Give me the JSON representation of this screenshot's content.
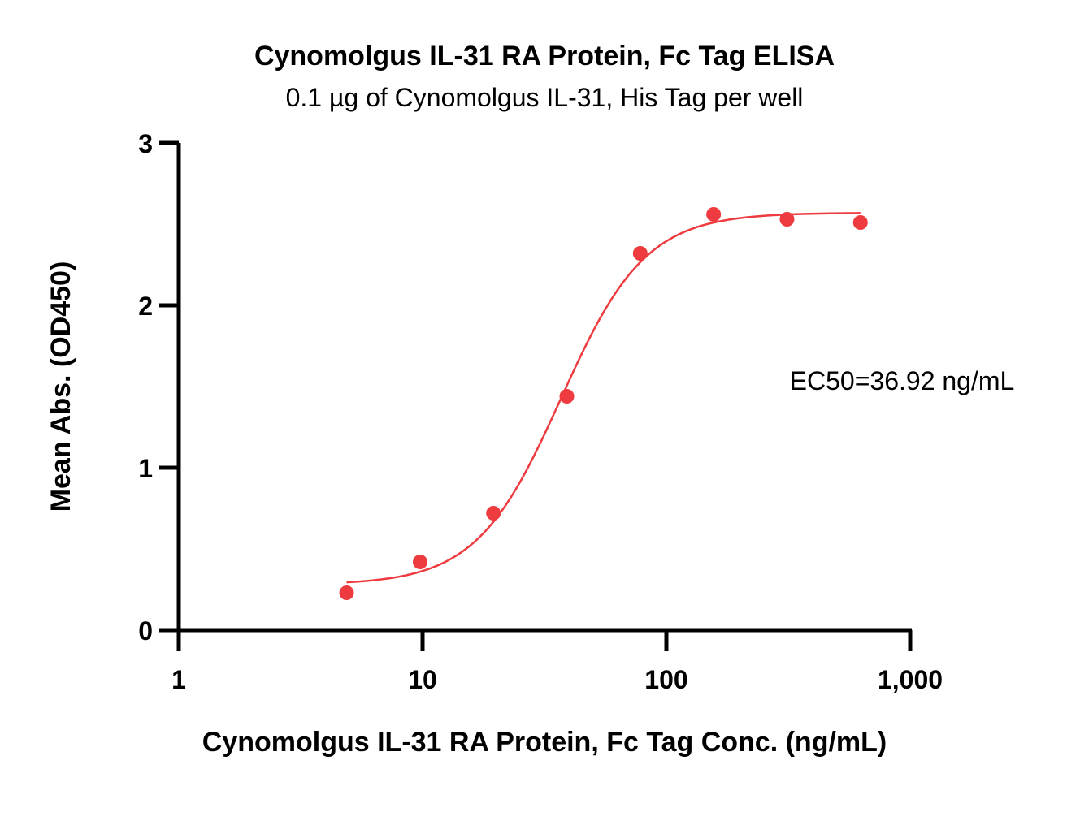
{
  "chart_data": {
    "type": "scatter",
    "title": "Cynomolgus IL-31 RA Protein, Fc Tag ELISA",
    "subtitle": "0.1 µg of Cynomolgus IL-31, His Tag per well",
    "xlabel": "Cynomolgus IL-31 RA Protein, Fc Tag Conc. (ng/mL)",
    "ylabel": "Mean Abs. (OD450)",
    "x_scale": "log",
    "xlim": [
      1,
      1000
    ],
    "ylim": [
      0,
      3
    ],
    "x_ticks": [
      {
        "value": 1,
        "label": "1"
      },
      {
        "value": 10,
        "label": "10"
      },
      {
        "value": 100,
        "label": "100"
      },
      {
        "value": 1000,
        "label": "1,000"
      }
    ],
    "y_ticks": [
      {
        "value": 0,
        "label": "0"
      },
      {
        "value": 1,
        "label": "1"
      },
      {
        "value": 2,
        "label": "2"
      },
      {
        "value": 3,
        "label": "3"
      }
    ],
    "series": [
      {
        "color": "#ee3b3f",
        "points": [
          {
            "x": 4.88,
            "y": 0.23
          },
          {
            "x": 9.77,
            "y": 0.42
          },
          {
            "x": 19.53,
            "y": 0.72
          },
          {
            "x": 39.06,
            "y": 1.44
          },
          {
            "x": 78.13,
            "y": 2.32
          },
          {
            "x": 156.25,
            "y": 2.56
          },
          {
            "x": 312.5,
            "y": 2.53
          },
          {
            "x": 625,
            "y": 2.51
          }
        ],
        "fit_curve": {
          "model": "4PL",
          "bottom": 0.28,
          "top": 2.57,
          "ec50": 36.92,
          "hill_slope": 2.5,
          "x_range": [
            4.88,
            625
          ]
        }
      }
    ],
    "annotation": "EC50=36.92 ng/mL",
    "grid": false,
    "legend": "none"
  }
}
